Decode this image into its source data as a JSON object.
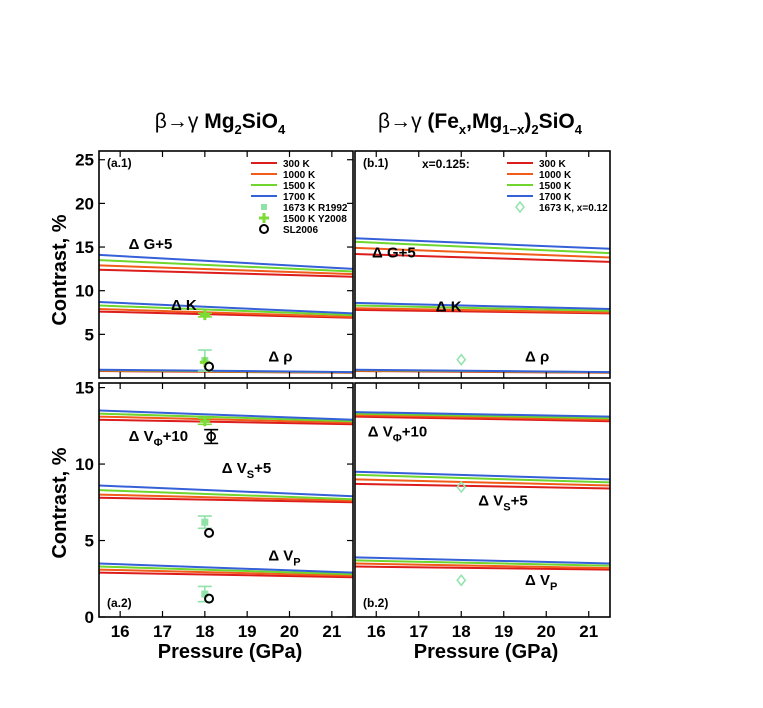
{
  "colors": {
    "300 K": "#dd1c1c",
    "1000 K": "#f25c1a",
    "1500 K": "#6ed62c",
    "1700 K": "#3560d8",
    "R1992": "#8fe3a8",
    "Y2008": "#7cdc34",
    "SL2006": "#000000",
    "light_green": "#96e3b0"
  },
  "figure": {
    "titles": [
      {
        "id": "left",
        "parts": [
          "β→γ ",
          "Mg",
          "2",
          "SiO",
          "4"
        ]
      },
      {
        "id": "right",
        "parts": [
          "β→γ ",
          "(Fe",
          "x",
          ",Mg",
          "1−x",
          ")",
          "2",
          "SiO",
          "4"
        ]
      }
    ],
    "xlabel": "Pressure (GPa)",
    "ylabel": "Contrast, %"
  },
  "chart_data": [
    {
      "id": "a1",
      "type": "line",
      "panel_label": "(a.1)",
      "xlim": [
        15.5,
        21.5
      ],
      "ylim": [
        0,
        26
      ],
      "xticks": [
        "16",
        "17",
        "18",
        "19",
        "20",
        "21"
      ],
      "yticks": [
        {
          "v": 5,
          "label": "5"
        },
        {
          "v": 10,
          "label": "10"
        },
        {
          "v": 15,
          "label": "15"
        },
        {
          "v": 20,
          "label": "20"
        },
        {
          "v": 25,
          "label": "25"
        }
      ],
      "legend": [
        {
          "label": "300 K",
          "type": "line",
          "color": "#dd1c1c"
        },
        {
          "label": "1000 K",
          "type": "line",
          "color": "#f25c1a"
        },
        {
          "label": "1500 K",
          "type": "line",
          "color": "#6ed62c"
        },
        {
          "label": "1700 K",
          "type": "line",
          "color": "#3560d8"
        },
        {
          "label": "1673 K R1992",
          "type": "square",
          "color": "#8fe3a8"
        },
        {
          "label": "1500 K Y2008",
          "type": "plus",
          "color": "#7cdc34"
        },
        {
          "label": "SL2006",
          "type": "circle",
          "color": "#000000"
        }
      ],
      "annotations": [
        {
          "text": "Δ G+5",
          "x": 16.2,
          "y": 14.8
        },
        {
          "text": "Δ K",
          "x": 17.2,
          "y": 7.8
        },
        {
          "text": "Δ ρ",
          "x": 19.5,
          "y": 1.9
        }
      ],
      "series": [
        {
          "name": "300 K",
          "x": [
            15.5,
            21.5
          ],
          "values": [
            12.4,
            11.6
          ]
        },
        {
          "name": "1000 K",
          "x": [
            15.5,
            21.5
          ],
          "values": [
            12.9,
            11.9
          ]
        },
        {
          "name": "1500 K",
          "x": [
            15.5,
            21.5
          ],
          "values": [
            13.5,
            12.2
          ]
        },
        {
          "name": "1700 K",
          "x": [
            15.5,
            21.5
          ],
          "values": [
            14.1,
            12.5
          ]
        },
        {
          "name": "300 K",
          "x": [
            15.5,
            21.5
          ],
          "values": [
            7.6,
            6.9
          ]
        },
        {
          "name": "1000 K",
          "x": [
            15.5,
            21.5
          ],
          "values": [
            7.9,
            7.0
          ]
        },
        {
          "name": "1500 K",
          "x": [
            15.5,
            21.5
          ],
          "values": [
            8.3,
            7.2
          ]
        },
        {
          "name": "1700 K",
          "x": [
            15.5,
            21.5
          ],
          "values": [
            8.7,
            7.4
          ]
        },
        {
          "name": "300 K",
          "x": [
            15.5,
            21.5
          ],
          "values": [
            0.8,
            0.6
          ]
        },
        {
          "name": "1000 K",
          "x": [
            15.5,
            21.5
          ],
          "values": [
            0.85,
            0.62
          ]
        },
        {
          "name": "1500 K",
          "x": [
            15.5,
            21.5
          ],
          "values": [
            0.9,
            0.65
          ]
        },
        {
          "name": "1700 K",
          "x": [
            15.5,
            21.5
          ],
          "values": [
            0.95,
            0.68
          ]
        }
      ],
      "points": [
        {
          "name": "1500 K Y2008",
          "type": "plus",
          "x": 18.0,
          "y": 7.2,
          "err": 0.2,
          "color": "#7cdc34"
        },
        {
          "name": "1673 K R1992",
          "type": "square",
          "x": 18.0,
          "y": 2.0,
          "err": 1.2,
          "color": "#8fe3a8"
        },
        {
          "name": "1500 K Y2008",
          "type": "plus",
          "x": 18.0,
          "y": 1.8,
          "err": 0,
          "color": "#7cdc34"
        },
        {
          "name": "SL2006",
          "type": "circle",
          "x": 18.1,
          "y": 1.3,
          "err": 0,
          "color": "#000000"
        }
      ]
    },
    {
      "id": "b1",
      "type": "line",
      "panel_label": "(b.1)",
      "subtitle": "x=0.125:",
      "xlim": [
        15.5,
        21.5
      ],
      "ylim": [
        0,
        26
      ],
      "xticks": [
        "16",
        "17",
        "18",
        "19",
        "20",
        "21"
      ],
      "yticks": [],
      "legend": [
        {
          "label": "300 K",
          "type": "line",
          "color": "#dd1c1c"
        },
        {
          "label": "1000 K",
          "type": "line",
          "color": "#f25c1a"
        },
        {
          "label": "1500 K",
          "type": "line",
          "color": "#6ed62c"
        },
        {
          "label": "1700 K",
          "type": "line",
          "color": "#3560d8"
        },
        {
          "label": "1673 K, x=0.12",
          "type": "diamond",
          "color": "#96e3b0"
        }
      ],
      "annotations": [
        {
          "text": "Δ G+5",
          "x": 15.9,
          "y": 13.8
        },
        {
          "text": "Δ K",
          "x": 17.4,
          "y": 7.6
        },
        {
          "text": "Δ ρ",
          "x": 19.5,
          "y": 1.9
        }
      ],
      "series": [
        {
          "name": "300 K",
          "x": [
            15.5,
            21.5
          ],
          "values": [
            14.2,
            13.3
          ]
        },
        {
          "name": "1000 K",
          "x": [
            15.5,
            21.5
          ],
          "values": [
            14.9,
            13.8
          ]
        },
        {
          "name": "1500 K",
          "x": [
            15.5,
            21.5
          ],
          "values": [
            15.6,
            14.3
          ]
        },
        {
          "name": "1700 K",
          "x": [
            15.5,
            21.5
          ],
          "values": [
            16.0,
            14.8
          ]
        },
        {
          "name": "300 K",
          "x": [
            15.5,
            21.5
          ],
          "values": [
            7.8,
            7.4
          ]
        },
        {
          "name": "1000 K",
          "x": [
            15.5,
            21.5
          ],
          "values": [
            8.0,
            7.5
          ]
        },
        {
          "name": "1500 K",
          "x": [
            15.5,
            21.5
          ],
          "values": [
            8.3,
            7.7
          ]
        },
        {
          "name": "1700 K",
          "x": [
            15.5,
            21.5
          ],
          "values": [
            8.6,
            7.9
          ]
        },
        {
          "name": "300 K",
          "x": [
            15.5,
            21.5
          ],
          "values": [
            0.8,
            0.6
          ]
        },
        {
          "name": "1000 K",
          "x": [
            15.5,
            21.5
          ],
          "values": [
            0.85,
            0.62
          ]
        },
        {
          "name": "1500 K",
          "x": [
            15.5,
            21.5
          ],
          "values": [
            0.9,
            0.65
          ]
        },
        {
          "name": "1700 K",
          "x": [
            15.5,
            21.5
          ],
          "values": [
            0.95,
            0.68
          ]
        }
      ],
      "points": [
        {
          "name": "1673 K, x=0.12",
          "type": "diamond",
          "x": 18.0,
          "y": 2.1,
          "err": 0,
          "color": "#96e3b0"
        }
      ]
    },
    {
      "id": "a2",
      "type": "line",
      "panel_label": "(a.2)",
      "xlim": [
        15.5,
        21.5
      ],
      "ylim": [
        0,
        15.3
      ],
      "xticks": [
        "16",
        "17",
        "18",
        "19",
        "20",
        "21"
      ],
      "yticks": [
        {
          "v": 0,
          "label": "0"
        },
        {
          "v": 5,
          "label": "5"
        },
        {
          "v": 10,
          "label": "10"
        },
        {
          "v": 15,
          "label": "15"
        }
      ],
      "annotations": [
        {
          "text": "Δ V",
          "sub": "Φ",
          "tail": "+10",
          "x": 16.2,
          "y": 11.5
        },
        {
          "text": "Δ V",
          "sub": "S",
          "tail": "+5",
          "x": 18.4,
          "y": 9.4
        },
        {
          "text": "Δ V",
          "sub": "P",
          "tail": "",
          "x": 19.5,
          "y": 3.7
        }
      ],
      "series": [
        {
          "name": "300 K",
          "x": [
            15.5,
            21.5
          ],
          "values": [
            12.9,
            12.6
          ]
        },
        {
          "name": "1000 K",
          "x": [
            15.5,
            21.5
          ],
          "values": [
            13.1,
            12.7
          ]
        },
        {
          "name": "1500 K",
          "x": [
            15.5,
            21.5
          ],
          "values": [
            13.3,
            12.8
          ]
        },
        {
          "name": "1700 K",
          "x": [
            15.5,
            21.5
          ],
          "values": [
            13.5,
            12.9
          ]
        },
        {
          "name": "300 K",
          "x": [
            15.5,
            21.5
          ],
          "values": [
            7.8,
            7.5
          ]
        },
        {
          "name": "1000 K",
          "x": [
            15.5,
            21.5
          ],
          "values": [
            8.0,
            7.6
          ]
        },
        {
          "name": "1500 K",
          "x": [
            15.5,
            21.5
          ],
          "values": [
            8.3,
            7.7
          ]
        },
        {
          "name": "1700 K",
          "x": [
            15.5,
            21.5
          ],
          "values": [
            8.6,
            7.9
          ]
        },
        {
          "name": "300 K",
          "x": [
            15.5,
            21.5
          ],
          "values": [
            2.9,
            2.6
          ]
        },
        {
          "name": "1000 K",
          "x": [
            15.5,
            21.5
          ],
          "values": [
            3.1,
            2.7
          ]
        },
        {
          "name": "1500 K",
          "x": [
            15.5,
            21.5
          ],
          "values": [
            3.3,
            2.8
          ]
        },
        {
          "name": "1700 K",
          "x": [
            15.5,
            21.5
          ],
          "values": [
            3.5,
            2.9
          ]
        }
      ],
      "points": [
        {
          "name": "1500 K Y2008",
          "type": "plus",
          "x": 18.0,
          "y": 12.8,
          "err": 0.2,
          "color": "#7cdc34"
        },
        {
          "name": "SL2006 (V_Φ)",
          "type": "phi",
          "x": 18.15,
          "y": 11.8,
          "err": 0.45,
          "color": "#000000"
        },
        {
          "name": "1673 K R1992",
          "type": "square",
          "x": 18.0,
          "y": 6.2,
          "err": 0.4,
          "color": "#8fe3a8"
        },
        {
          "name": "SL2006",
          "type": "circle",
          "x": 18.1,
          "y": 5.5,
          "err": 0,
          "color": "#000000"
        },
        {
          "name": "1673 K R1992",
          "type": "square",
          "x": 18.0,
          "y": 1.5,
          "err": 0.5,
          "color": "#8fe3a8"
        },
        {
          "name": "SL2006",
          "type": "circle",
          "x": 18.1,
          "y": 1.2,
          "err": 0,
          "color": "#000000"
        }
      ]
    },
    {
      "id": "b2",
      "type": "line",
      "panel_label": "(b.2)",
      "xlim": [
        15.5,
        21.5
      ],
      "ylim": [
        0,
        15.3
      ],
      "xticks": [
        "16",
        "17",
        "18",
        "19",
        "20",
        "21"
      ],
      "yticks": [],
      "annotations": [
        {
          "text": "Δ V",
          "sub": "Φ",
          "tail": "+10",
          "x": 15.8,
          "y": 11.8
        },
        {
          "text": "Δ V",
          "sub": "S",
          "tail": "+5",
          "x": 18.4,
          "y": 7.3
        },
        {
          "text": "Δ V",
          "sub": "P",
          "tail": "",
          "x": 19.5,
          "y": 2.1
        }
      ],
      "series": [
        {
          "name": "300 K",
          "x": [
            15.5,
            21.5
          ],
          "values": [
            13.1,
            12.8
          ]
        },
        {
          "name": "1000 K",
          "x": [
            15.5,
            21.5
          ],
          "values": [
            13.2,
            12.9
          ]
        },
        {
          "name": "1500 K",
          "x": [
            15.5,
            21.5
          ],
          "values": [
            13.3,
            13.0
          ]
        },
        {
          "name": "1700 K",
          "x": [
            15.5,
            21.5
          ],
          "values": [
            13.4,
            13.1
          ]
        },
        {
          "name": "300 K",
          "x": [
            15.5,
            21.5
          ],
          "values": [
            8.7,
            8.4
          ]
        },
        {
          "name": "1000 K",
          "x": [
            15.5,
            21.5
          ],
          "values": [
            9.0,
            8.6
          ]
        },
        {
          "name": "1500 K",
          "x": [
            15.5,
            21.5
          ],
          "values": [
            9.3,
            8.8
          ]
        },
        {
          "name": "1700 K",
          "x": [
            15.5,
            21.5
          ],
          "values": [
            9.5,
            9.0
          ]
        },
        {
          "name": "300 K",
          "x": [
            15.5,
            21.5
          ],
          "values": [
            3.3,
            3.1
          ]
        },
        {
          "name": "1000 K",
          "x": [
            15.5,
            21.5
          ],
          "values": [
            3.5,
            3.2
          ]
        },
        {
          "name": "1500 K",
          "x": [
            15.5,
            21.5
          ],
          "values": [
            3.7,
            3.35
          ]
        },
        {
          "name": "1700 K",
          "x": [
            15.5,
            21.5
          ],
          "values": [
            3.9,
            3.5
          ]
        }
      ],
      "points": [
        {
          "name": "1673 K, x=0.12",
          "type": "diamond",
          "x": 18.0,
          "y": 8.5,
          "err": 0,
          "color": "#96e3b0"
        },
        {
          "name": "1673 K, x=0.12",
          "type": "diamond",
          "x": 18.0,
          "y": 2.4,
          "err": 0,
          "color": "#96e3b0"
        }
      ]
    }
  ]
}
